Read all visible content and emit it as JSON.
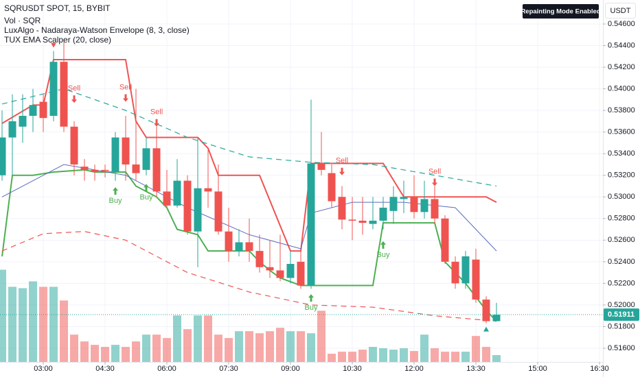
{
  "chart_data": {
    "type": "candlestick",
    "title": "SQRUSDT SPOT, 15, BYBIT",
    "indicators": [
      "Vol · SQR",
      "LuxAlgo - Nadaraya-Watson Envelope (8, 3, close)",
      "TUX EMA Scalper (20, close)"
    ],
    "badge": "Repainting Mode Enabled",
    "currency": "USDT",
    "up_color": "#26a69a",
    "down_color": "#ef5350",
    "x": [
      120,
      135,
      150,
      165,
      180,
      195,
      210,
      225,
      240,
      255,
      270,
      285,
      300,
      315,
      330,
      345,
      360,
      375,
      390,
      405,
      420,
      435,
      450,
      465,
      480,
      495,
      510,
      525,
      540,
      555,
      570,
      585,
      600,
      615,
      630,
      645,
      660,
      675,
      690,
      705,
      720,
      735,
      750,
      765,
      780,
      795,
      810,
      825,
      840
    ],
    "open": [
      0.532,
      0.5355,
      0.5365,
      0.5375,
      0.5388,
      0.5375,
      0.5425,
      0.5365,
      0.5328,
      0.5325,
      0.5325,
      0.5323,
      0.5355,
      0.533,
      0.5325,
      0.5345,
      0.5305,
      0.5292,
      0.5315,
      0.5268,
      0.5308,
      0.5305,
      0.5268,
      0.525,
      0.5258,
      0.525,
      0.5235,
      0.5232,
      0.5225,
      0.524,
      0.5218,
      0.5331,
      0.5322,
      0.53,
      0.5279,
      0.5278,
      0.5275,
      0.5278,
      0.5287,
      0.5298,
      0.53,
      0.5286,
      0.5298,
      0.528,
      0.524,
      0.522,
      0.5242,
      0.5205,
      0.5185
    ],
    "high": [
      0.538,
      0.5395,
      0.5395,
      0.54,
      0.5395,
      0.5435,
      0.5445,
      0.537,
      0.5335,
      0.533,
      0.533,
      0.536,
      0.5375,
      0.54,
      0.5355,
      0.5365,
      0.5325,
      0.5335,
      0.532,
      0.5355,
      0.5345,
      0.533,
      0.529,
      0.527,
      0.528,
      0.5265,
      0.526,
      0.5265,
      0.525,
      0.525,
      0.539,
      0.536,
      0.533,
      0.531,
      0.53,
      0.53,
      0.53,
      0.53,
      0.531,
      0.5315,
      0.532,
      0.5315,
      0.531,
      0.5283,
      0.5245,
      0.525,
      0.5252,
      0.5208,
      0.5202
    ],
    "low": [
      0.5315,
      0.532,
      0.535,
      0.536,
      0.536,
      0.537,
      0.536,
      0.532,
      0.5315,
      0.5315,
      0.5318,
      0.5315,
      0.5315,
      0.5315,
      0.532,
      0.53,
      0.529,
      0.529,
      0.5265,
      0.5235,
      0.529,
      0.5265,
      0.524,
      0.5245,
      0.524,
      0.523,
      0.5225,
      0.5222,
      0.522,
      0.5215,
      0.5215,
      0.532,
      0.529,
      0.527,
      0.526,
      0.5265,
      0.527,
      0.527,
      0.5275,
      0.5285,
      0.528,
      0.528,
      0.5275,
      0.5238,
      0.5215,
      0.5215,
      0.5202,
      0.5183,
      0.5185
    ],
    "close": [
      0.5355,
      0.537,
      0.5375,
      0.5385,
      0.5373,
      0.5425,
      0.5365,
      0.533,
      0.5325,
      0.5323,
      0.5324,
      0.5355,
      0.533,
      0.5322,
      0.5345,
      0.5305,
      0.5292,
      0.5315,
      0.5268,
      0.5308,
      0.5305,
      0.5268,
      0.525,
      0.5258,
      0.525,
      0.5235,
      0.5232,
      0.5225,
      0.5238,
      0.5218,
      0.5331,
      0.5325,
      0.5296,
      0.5279,
      0.5278,
      0.5276,
      0.5278,
      0.529,
      0.53,
      0.53,
      0.5286,
      0.5298,
      0.528,
      0.524,
      0.522,
      0.5245,
      0.5205,
      0.5185,
      0.5191
    ],
    "volume": {
      "ylim": [
        0,
        530
      ],
      "values": [
        135,
        110,
        108,
        118,
        110,
        110,
        90,
        40,
        30,
        25,
        22,
        25,
        22,
        30,
        40,
        40,
        35,
        68,
        48,
        68,
        68,
        40,
        35,
        45,
        45,
        42,
        45,
        50,
        45,
        45,
        42,
        75,
        12,
        15,
        15,
        18,
        22,
        20,
        18,
        20,
        16,
        40,
        20,
        15,
        15,
        15,
        38,
        22,
        10
      ]
    },
    "lines": [
      {
        "color": "#ef5350",
        "width": 2,
        "dash": false,
        "x": [
          120,
          165,
          180,
          195,
          300,
          315,
          330,
          405,
          420,
          435,
          495,
          540,
          555,
          570,
          675,
          705,
          825,
          840
        ],
        "values": [
          0.5368,
          0.5385,
          0.5385,
          0.5427,
          0.5427,
          0.537,
          0.5355,
          0.5355,
          0.5345,
          0.532,
          0.532,
          0.525,
          0.525,
          0.5331,
          0.5331,
          0.53,
          0.53,
          0.5295
        ]
      },
      {
        "color": "#4caf50",
        "width": 2,
        "dash": false,
        "x": [
          120,
          135,
          165,
          195,
          240,
          255,
          300,
          315,
          345,
          360,
          375,
          405,
          420,
          480,
          495,
          510,
          525,
          555,
          660,
          675,
          750,
          765,
          795,
          825,
          840
        ],
        "values": [
          0.5245,
          0.532,
          0.532,
          0.5323,
          0.5325,
          0.5323,
          0.5323,
          0.531,
          0.53,
          0.529,
          0.527,
          0.5265,
          0.525,
          0.525,
          0.524,
          0.5232,
          0.5225,
          0.5218,
          0.5218,
          0.5276,
          0.5276,
          0.524,
          0.522,
          0.5195,
          0.5185
        ]
      },
      {
        "color": "#26a69a",
        "width": 1.2,
        "dash": true,
        "x": [
          120,
          210,
          300,
          390,
          480,
          570,
          660,
          750,
          840
        ],
        "values": [
          0.5386,
          0.54,
          0.538,
          0.5355,
          0.5337,
          0.5332,
          0.533,
          0.532,
          0.531
        ]
      },
      {
        "color": "#ef5350",
        "width": 1.2,
        "dash": true,
        "x": [
          120,
          180,
          240,
          300,
          390,
          480,
          570,
          660,
          750,
          840
        ],
        "values": [
          0.525,
          0.5266,
          0.5268,
          0.526,
          0.523,
          0.5212,
          0.52,
          0.5198,
          0.519,
          0.5185
        ]
      },
      {
        "color": "#5b6bbf",
        "width": 1,
        "dash": false,
        "x": [
          120,
          210,
          300,
          390,
          480,
          555,
          570,
          630,
          705,
          780,
          840
        ],
        "values": [
          0.53,
          0.533,
          0.532,
          0.529,
          0.5265,
          0.5252,
          0.5285,
          0.5295,
          0.5295,
          0.529,
          0.525
        ]
      }
    ],
    "signals": [
      {
        "text": "Sell",
        "x": 225,
        "price": 0.5387
      },
      {
        "text": "Sell",
        "x": 300,
        "price": 0.5388
      },
      {
        "text": "Sell",
        "x": 345,
        "price": 0.5365
      },
      {
        "text": "Sell",
        "x": 615,
        "price": 0.532
      },
      {
        "text": "Sell",
        "x": 750,
        "price": 0.531
      },
      {
        "text": "Buy",
        "x": 285,
        "price": 0.5309
      },
      {
        "text": "Buy",
        "x": 330,
        "price": 0.5312
      },
      {
        "text": "Buy",
        "x": 570,
        "price": 0.521
      },
      {
        "text": "Buy",
        "x": 675,
        "price": 0.5259
      }
    ],
    "markers": [
      {
        "x": 195,
        "price": 0.544,
        "color": "#ef5350",
        "dir": "down"
      },
      {
        "x": 825,
        "price": 0.5178,
        "color": "#26a69a",
        "dir": "up"
      }
    ],
    "last_price": 0.51911,
    "xlim": [
      117,
      995
    ],
    "ylim": [
      0.51473,
      0.54822
    ],
    "grid": true,
    "xticks": [
      {
        "value": 180,
        "label": "03:00"
      },
      {
        "value": 270,
        "label": "04:30"
      },
      {
        "value": 360,
        "label": "06:00"
      },
      {
        "value": 450,
        "label": "07:30"
      },
      {
        "value": 540,
        "label": "09:00"
      },
      {
        "value": 630,
        "label": "10:30"
      },
      {
        "value": 720,
        "label": "12:00"
      },
      {
        "value": 810,
        "label": "13:30"
      },
      {
        "value": 900,
        "label": "15:00"
      },
      {
        "value": 990,
        "label": "16:30"
      }
    ],
    "yticks": [
      {
        "value": 0.516,
        "label": "0.51600"
      },
      {
        "value": 0.518,
        "label": "0.51800"
      },
      {
        "value": 0.52,
        "label": "0.52000"
      },
      {
        "value": 0.522,
        "label": "0.52200"
      },
      {
        "value": 0.524,
        "label": "0.52400"
      },
      {
        "value": 0.526,
        "label": "0.52600"
      },
      {
        "value": 0.528,
        "label": "0.52800"
      },
      {
        "value": 0.53,
        "label": "0.53000"
      },
      {
        "value": 0.532,
        "label": "0.53200"
      },
      {
        "value": 0.534,
        "label": "0.53400"
      },
      {
        "value": 0.536,
        "label": "0.53600"
      },
      {
        "value": 0.538,
        "label": "0.53800"
      },
      {
        "value": 0.54,
        "label": "0.54000"
      },
      {
        "value": 0.542,
        "label": "0.54200"
      },
      {
        "value": 0.544,
        "label": "0.54400"
      },
      {
        "value": 0.546,
        "label": "0.54600"
      }
    ]
  }
}
